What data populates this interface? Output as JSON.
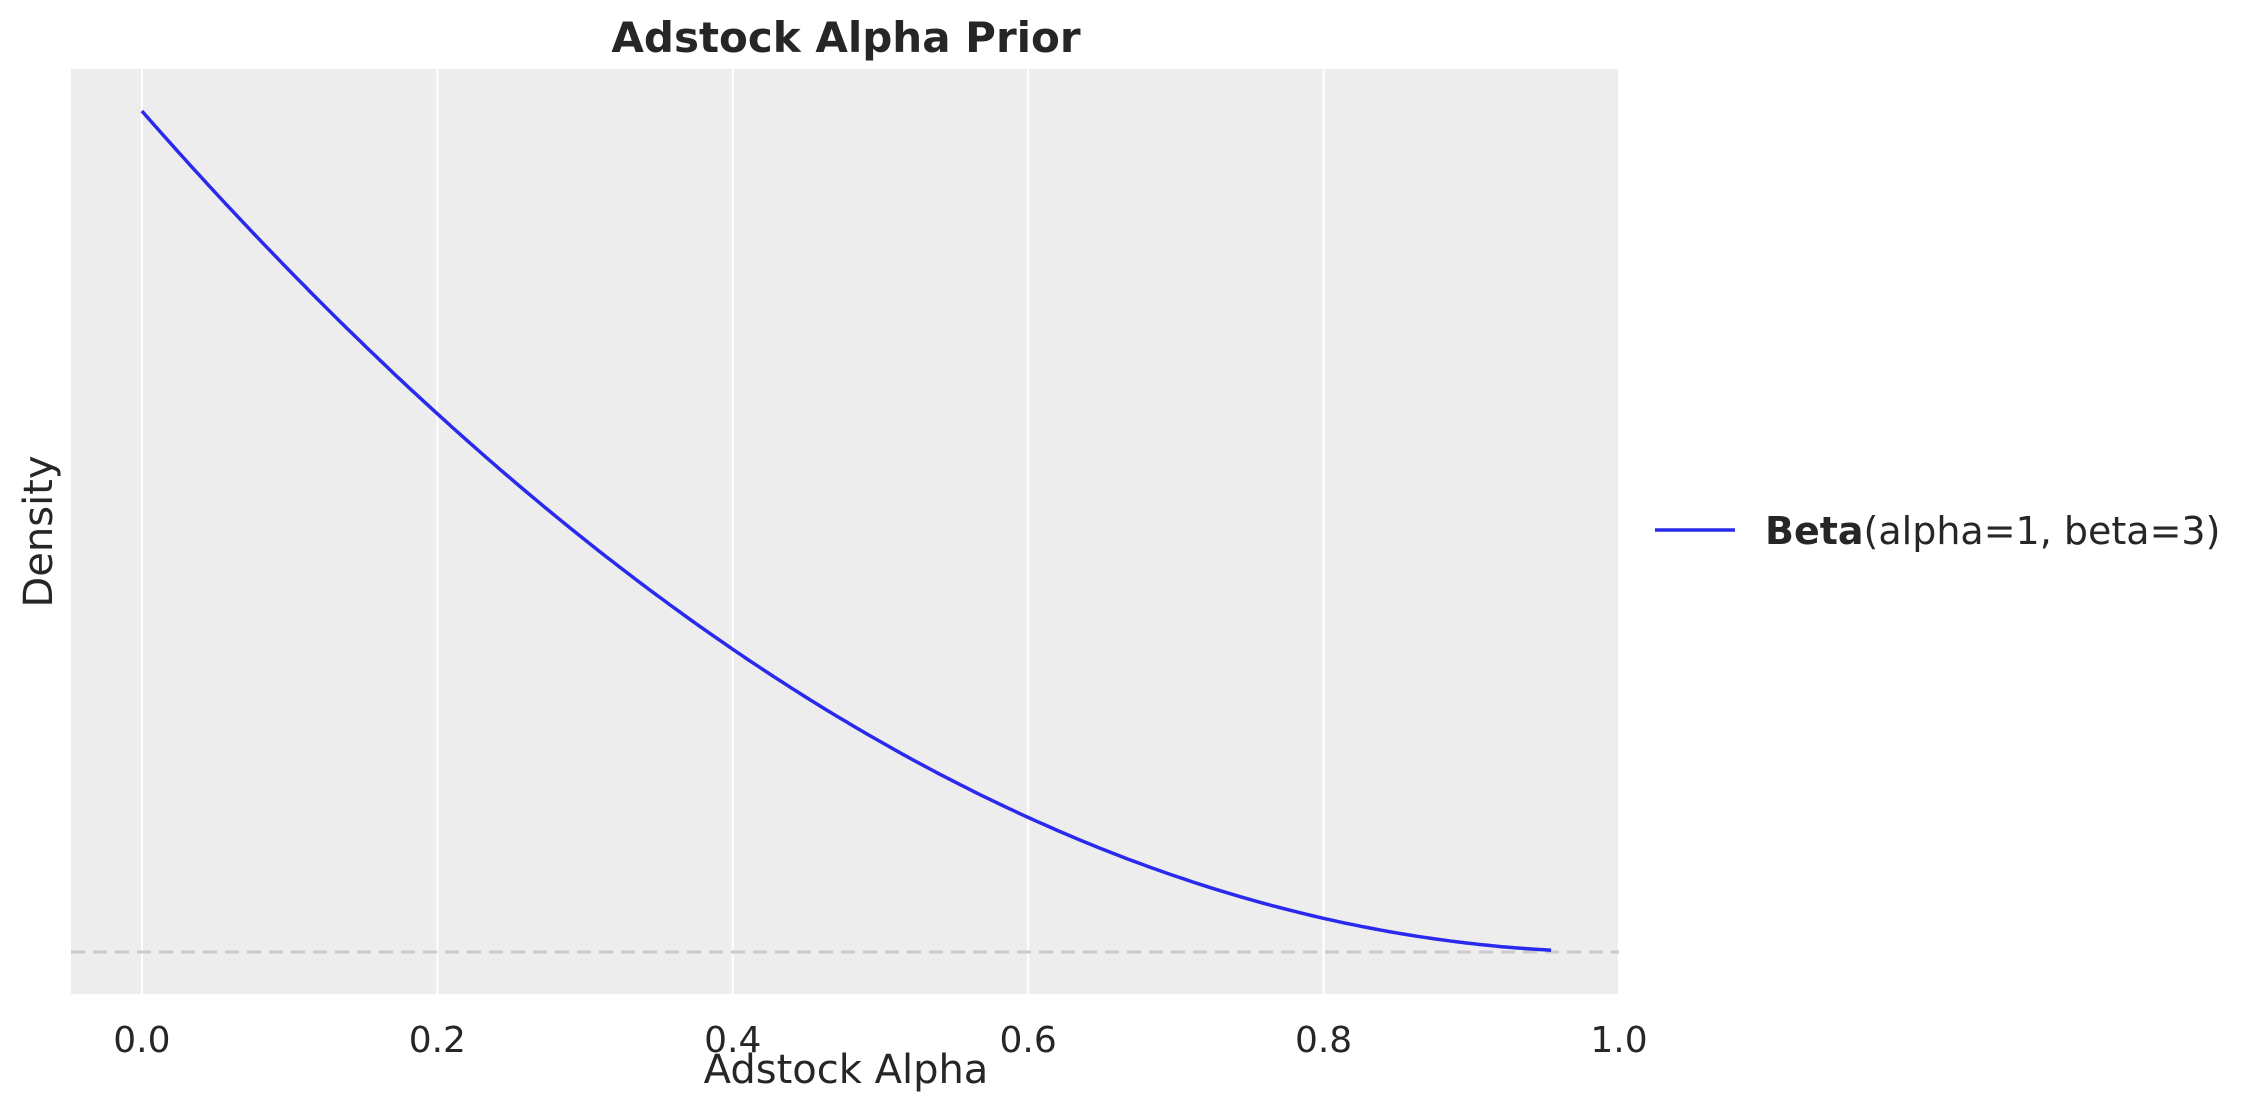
{
  "chart_data": {
    "type": "line",
    "title": "Adstock Alpha Prior",
    "xlabel": "Adstock Alpha",
    "ylabel": "Density",
    "xlim": [
      -0.048,
      1.0
    ],
    "ylim": [
      -0.15,
      3.15
    ],
    "xticks": [
      "0.0",
      "0.2",
      "0.4",
      "0.6",
      "0.8",
      "1.0"
    ],
    "yticks": [],
    "grid": "vertical",
    "background": "#ededed",
    "legend_placement": "right outside",
    "series": [
      {
        "name_bold": "Beta",
        "name_rest": "(alpha=1, beta=3)",
        "color": "#2a2aee",
        "function": "3*(1-x)^2",
        "x": [
          0.0,
          0.05,
          0.1,
          0.15,
          0.2,
          0.25,
          0.3,
          0.35,
          0.4,
          0.45,
          0.5,
          0.55,
          0.6,
          0.65,
          0.7,
          0.75,
          0.8,
          0.85,
          0.9,
          0.954
        ],
        "y": [
          3.0,
          2.7075,
          2.43,
          2.1675,
          1.92,
          1.6875,
          1.47,
          1.2675,
          1.08,
          0.9075,
          0.75,
          0.6075,
          0.48,
          0.3675,
          0.27,
          0.1875,
          0.12,
          0.0675,
          0.03,
          0.0063
        ]
      }
    ],
    "reference_line": {
      "y": 0,
      "style": "dashed",
      "color": "#cccccc"
    }
  }
}
